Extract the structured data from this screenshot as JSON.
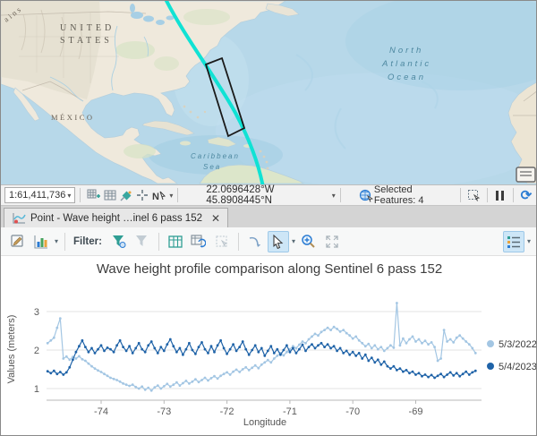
{
  "map": {
    "labels": {
      "country1": "UNITED",
      "country1b": "STATES",
      "country2": "MÉXICO",
      "ocean1a": "North",
      "ocean1b": "Atlantic",
      "ocean1c": "Ocean",
      "sea1a": "Caribbean",
      "sea1b": "Sea",
      "partial": "ains"
    },
    "track_color": "#10e2d4",
    "extent_box_color": "#1a1a1a",
    "icons": [
      "legend-widget-icon"
    ]
  },
  "status_bar": {
    "scale": "1:61,411,736",
    "coordinates": "22.0696428°W 45.8908445°N",
    "selected_features": "Selected Features: 4",
    "icons": [
      "add-grid-icon",
      "table-icon",
      "snapping-icon",
      "crosshair-icon",
      "north-pointer-icon",
      "chevron-down-icon",
      "globe-select-icon",
      "select-box-icon",
      "pause-icon",
      "refresh-icon"
    ]
  },
  "tab": {
    "title": "Point - Wave height …inel 6 pass 152",
    "close_glyph": "✕",
    "icons": [
      "chart-tab-icon"
    ]
  },
  "toolbar": {
    "filter_label": "Filter:",
    "icons": [
      "chart-properties-icon",
      "chart-type-icon",
      "filter-extent-icon",
      "filter-selection-icon",
      "table-icon",
      "refresh-table-icon",
      "selection-disabled-icon",
      "redo-arrow-icon",
      "pointer-icon",
      "zoom-in-icon",
      "full-extent-icon",
      "legend-list-icon"
    ]
  },
  "chart_data": {
    "type": "line",
    "title": "Wave height profile comparison along Sentinel 6 pass 152",
    "xlabel": "Longitude",
    "ylabel": "Values (meters)",
    "x_ticks": [
      -74,
      -73,
      -72,
      -71,
      -70,
      -69
    ],
    "y_ticks": [
      1,
      2,
      3
    ],
    "xlim": [
      -74.87,
      -68.0
    ],
    "ylim": [
      0.8,
      3.35
    ],
    "grid": "horizontal",
    "legend_position": "right",
    "series": [
      {
        "name": "5/3/2022",
        "color": "#a3c6e3",
        "x_start": -74.85,
        "x_step": 0.05,
        "values": [
          2.18,
          2.25,
          2.32,
          2.58,
          2.82,
          1.78,
          1.83,
          1.75,
          1.82,
          1.78,
          1.84,
          1.76,
          1.72,
          1.65,
          1.58,
          1.52,
          1.47,
          1.43,
          1.38,
          1.33,
          1.28,
          1.25,
          1.22,
          1.18,
          1.13,
          1.1,
          1.07,
          1.1,
          1.04,
          1.0,
          1.05,
          0.97,
          1.02,
          0.95,
          1.03,
          1.08,
          1.0,
          1.06,
          1.12,
          1.05,
          1.1,
          1.16,
          1.08,
          1.14,
          1.2,
          1.13,
          1.18,
          1.24,
          1.17,
          1.22,
          1.28,
          1.21,
          1.27,
          1.32,
          1.26,
          1.33,
          1.38,
          1.42,
          1.36,
          1.44,
          1.49,
          1.43,
          1.5,
          1.55,
          1.48,
          1.54,
          1.6,
          1.53,
          1.62,
          1.68,
          1.74,
          1.68,
          1.78,
          1.85,
          1.92,
          1.86,
          1.95,
          2.02,
          2.1,
          2.05,
          2.14,
          2.22,
          2.18,
          2.28,
          2.35,
          2.42,
          2.38,
          2.47,
          2.52,
          2.58,
          2.52,
          2.6,
          2.55,
          2.48,
          2.52,
          2.44,
          2.38,
          2.3,
          2.35,
          2.25,
          2.18,
          2.1,
          2.16,
          2.05,
          2.12,
          2.02,
          2.08,
          1.98,
          2.05,
          2.12,
          2.06,
          3.22,
          2.12,
          2.3,
          2.18,
          2.28,
          2.35,
          2.22,
          2.28,
          2.18,
          2.24,
          2.15,
          2.2,
          2.08,
          1.72,
          1.78,
          2.52,
          2.22,
          2.28,
          2.2,
          2.32,
          2.38,
          2.3,
          2.22,
          2.15,
          2.05,
          1.92
        ]
      },
      {
        "name": "5/4/2023",
        "color": "#1f63a8",
        "x_start": -74.85,
        "x_step": 0.05,
        "values": [
          1.45,
          1.4,
          1.46,
          1.38,
          1.43,
          1.36,
          1.42,
          1.55,
          1.75,
          1.95,
          2.1,
          2.25,
          2.08,
          1.95,
          2.05,
          1.92,
          2.02,
          2.12,
          1.98,
          2.06,
          2.02,
          1.95,
          2.12,
          2.25,
          2.08,
          1.98,
          2.1,
          1.92,
          2.05,
          2.18,
          2.02,
          1.95,
          2.12,
          2.22,
          2.05,
          1.92,
          2.08,
          1.98,
          2.15,
          2.28,
          2.1,
          1.95,
          2.05,
          1.88,
          2.02,
          2.18,
          2.0,
          1.9,
          2.08,
          2.2,
          2.02,
          1.92,
          2.1,
          1.95,
          2.12,
          2.25,
          2.05,
          1.9,
          2.02,
          2.15,
          1.98,
          2.08,
          2.22,
          2.02,
          1.88,
          2.0,
          2.12,
          1.95,
          2.05,
          1.85,
          1.98,
          2.1,
          1.92,
          2.02,
          1.88,
          2.0,
          2.12,
          1.95,
          2.05,
          1.92,
          2.02,
          2.14,
          1.98,
          2.08,
          2.15,
          2.05,
          2.12,
          2.18,
          2.08,
          2.15,
          2.05,
          2.1,
          1.98,
          2.05,
          1.92,
          1.98,
          1.88,
          1.95,
          1.85,
          1.92,
          1.78,
          1.88,
          1.72,
          1.8,
          1.68,
          1.75,
          1.62,
          1.7,
          1.58,
          1.52,
          1.58,
          1.48,
          1.52,
          1.44,
          1.48,
          1.4,
          1.44,
          1.36,
          1.4,
          1.32,
          1.36,
          1.3,
          1.35,
          1.28,
          1.33,
          1.38,
          1.3,
          1.36,
          1.42,
          1.34,
          1.4,
          1.32,
          1.38,
          1.44,
          1.36,
          1.42,
          1.46
        ]
      }
    ]
  }
}
